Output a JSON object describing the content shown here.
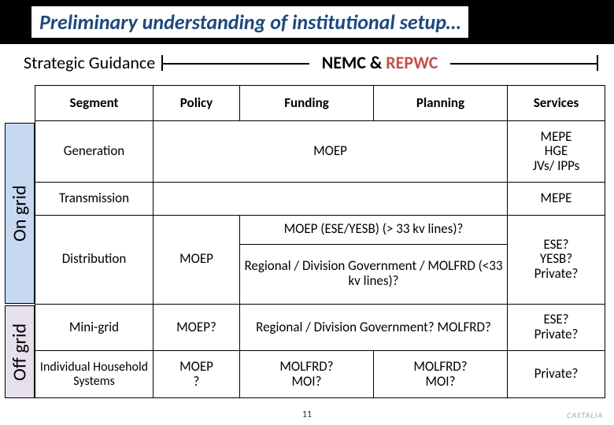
{
  "title": "Preliminary understanding of institutional setup…",
  "guidance": {
    "label": "Strategic Guidance",
    "nemc": "NEMC & ",
    "repwc": "REPWC"
  },
  "side": {
    "on": "On grid",
    "off": "Off grid"
  },
  "headers": {
    "segment": "Segment",
    "policy": "Policy",
    "funding": "Funding",
    "planning": "Planning",
    "services": "Services"
  },
  "rows": {
    "generation": {
      "seg": "Generation",
      "fp": "MOEP",
      "serv": "MEPE\nHGE\nJVs/ IPPs"
    },
    "transmission": {
      "seg": "Transmission",
      "serv": "MEPE"
    },
    "moep33": {
      "text": "MOEP (ESE/YESB) (> 33 kv lines)?"
    },
    "distribution": {
      "seg": "Distribution",
      "policy": "MOEP",
      "fp": "Regional / Division Government / MOLFRD (<33 kv lines)?",
      "serv": "ESE?\nYESB?\nPrivate?"
    },
    "minigrid": {
      "seg": "Mini-grid",
      "policy": "MOEP?",
      "fp": "Regional / Division Government? MOLFRD?",
      "serv": "ESE?\nPrivate?"
    },
    "individual": {
      "seg": "Individual Household Systems",
      "policy": "MOEP\n?",
      "funding": "MOLFRD?\nMOI?",
      "planning": "MOLFRD?\nMOI?",
      "serv": "Private?"
    }
  },
  "pagenum": "11",
  "logo": "CASTALIA",
  "colors": {
    "title_blue": "#1f497d",
    "repwc_red": "#c0504d",
    "on_grid_bg": "#c6d9f1",
    "off_grid_bg": "#e6e0ec"
  }
}
